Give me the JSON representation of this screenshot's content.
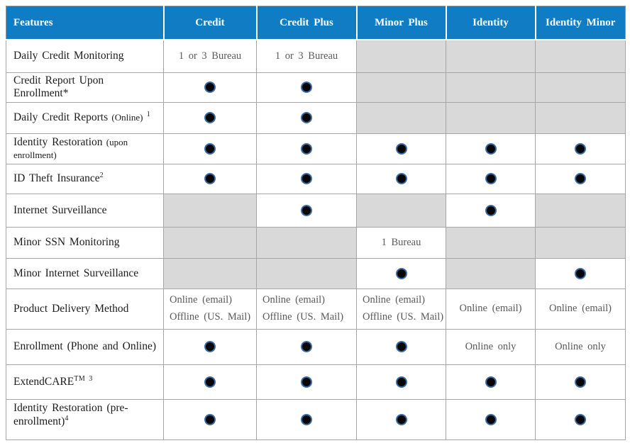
{
  "table": {
    "columns": [
      "Features",
      "Credit",
      "Credit Plus",
      "Minor Plus",
      "Identity",
      "Identity Minor"
    ],
    "colors": {
      "header_bg": "#0f7cc4",
      "header_text": "#ffffff",
      "na_cell_bg": "#d9d9d9",
      "bullet_fill": "#060606",
      "bullet_ring": "#3a6ba3",
      "value_text": "#595959"
    },
    "bullet_meaning": "included",
    "rows": [
      {
        "feature": "Daily Credit Monitoring",
        "cells": [
          {
            "text": "1 or 3 Bureau"
          },
          {
            "text": "1 or 3 Bureau"
          },
          "na",
          "na",
          "na"
        ]
      },
      {
        "feature": "Credit Report Upon Enrollment*",
        "cells": [
          "dot",
          "dot",
          "na",
          "na",
          "na"
        ]
      },
      {
        "feature": "Daily Credit Reports",
        "feature_small": " (Online) ",
        "feature_sup": "1",
        "cells": [
          "dot",
          "dot",
          "na",
          "na",
          "na"
        ]
      },
      {
        "feature": "Identity Restoration",
        "feature_small": " (upon enrollment)",
        "cells": [
          "dot",
          "dot",
          "dot",
          "dot",
          "dot"
        ]
      },
      {
        "feature": "ID Theft Insurance",
        "feature_sup": "2",
        "cells": [
          "dot",
          "dot",
          "dot",
          "dot",
          "dot"
        ]
      },
      {
        "feature": "Internet Surveillance",
        "cells": [
          "na",
          "dot",
          "na",
          "dot",
          "na"
        ]
      },
      {
        "feature": "Minor SSN Monitoring",
        "cells": [
          "na",
          "na",
          {
            "text": "1 Bureau"
          },
          "na",
          "na"
        ]
      },
      {
        "feature": "Minor Internet Surveillance",
        "cells": [
          "na",
          "na",
          "dot",
          "na",
          "dot"
        ]
      },
      {
        "feature": "Product Delivery Method",
        "cells": [
          {
            "lines": [
              "Online (email)",
              "Offline (US. Mail)"
            ]
          },
          {
            "lines": [
              "Online (email)",
              "Offline (US. Mail)"
            ]
          },
          {
            "lines": [
              "Online (email)",
              "Offline (US. Mail)"
            ]
          },
          {
            "text": "Online (email)"
          },
          {
            "text": "Online (email)"
          }
        ]
      },
      {
        "feature": "Enrollment (Phone and Online)",
        "cells": [
          "dot",
          "dot",
          "dot",
          {
            "text": "Online only"
          },
          {
            "text": "Online only"
          }
        ]
      },
      {
        "feature": "ExtendCARE",
        "feature_sup": "TM 3",
        "cells": [
          "dot",
          "dot",
          "dot",
          "dot",
          "dot"
        ]
      },
      {
        "feature": "Identity Restoration (pre-enrollment)",
        "feature_sup": "4",
        "cells": [
          "dot",
          "dot",
          "dot",
          "dot",
          "dot"
        ]
      }
    ]
  }
}
